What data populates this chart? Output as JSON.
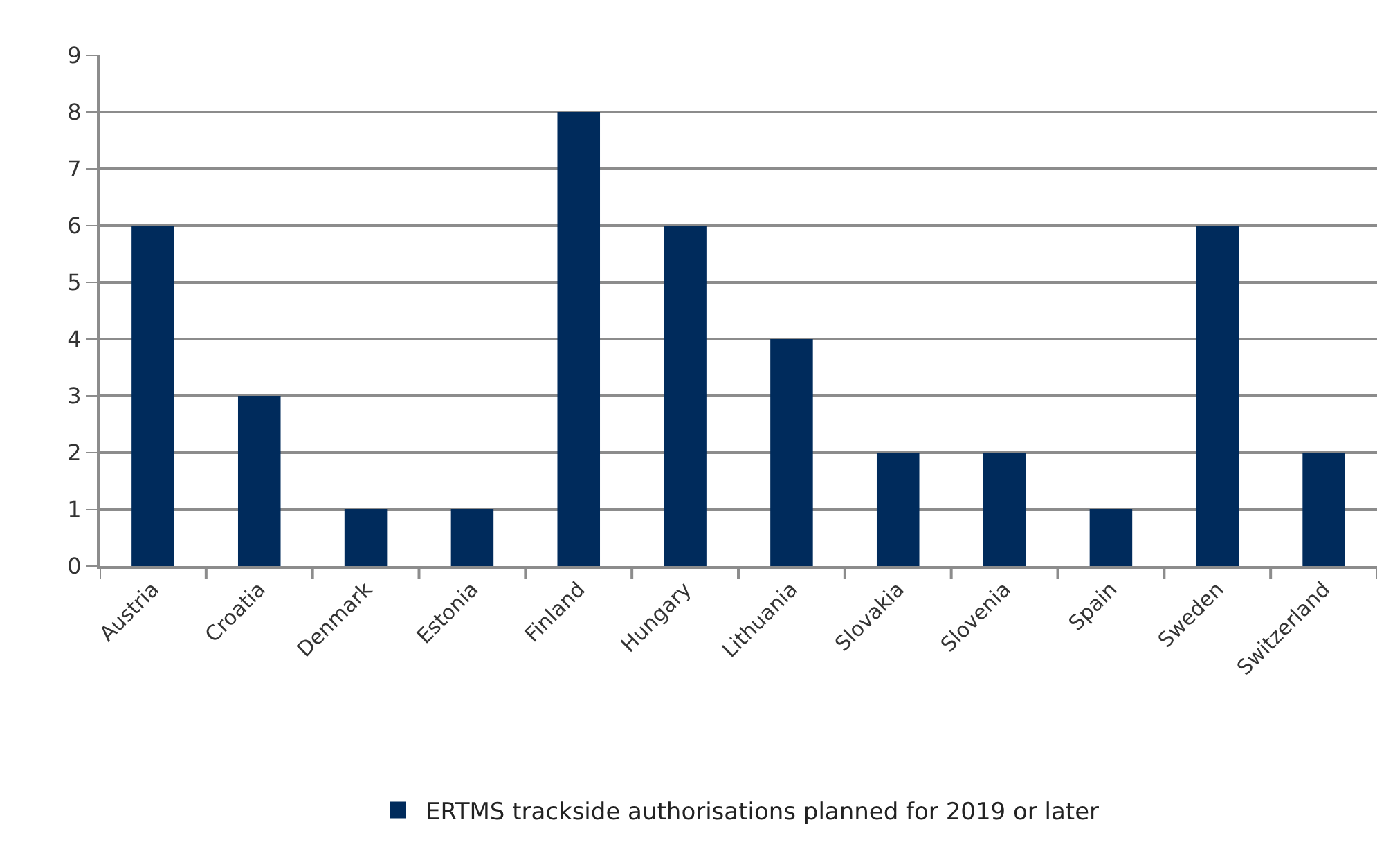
{
  "chart_data": {
    "type": "bar",
    "categories": [
      "Austria",
      "Croatia",
      "Denmark",
      "Estonia",
      "Finland",
      "Hungary",
      "Lithuania",
      "Slovakia",
      "Slovenia",
      "Spain",
      "Sweden",
      "Switzerland"
    ],
    "series": [
      {
        "name": "ERTMS trackside authorisations planned for 2019 or later",
        "color": "#002b5c",
        "values": [
          6,
          3,
          1,
          1,
          8,
          6,
          4,
          2,
          2,
          1,
          6,
          2
        ]
      }
    ],
    "ylim": [
      0,
      9
    ],
    "yticks": [
      0,
      1,
      2,
      3,
      4,
      5,
      6,
      7,
      8,
      9
    ],
    "grid": "y",
    "legend": "bottom"
  }
}
